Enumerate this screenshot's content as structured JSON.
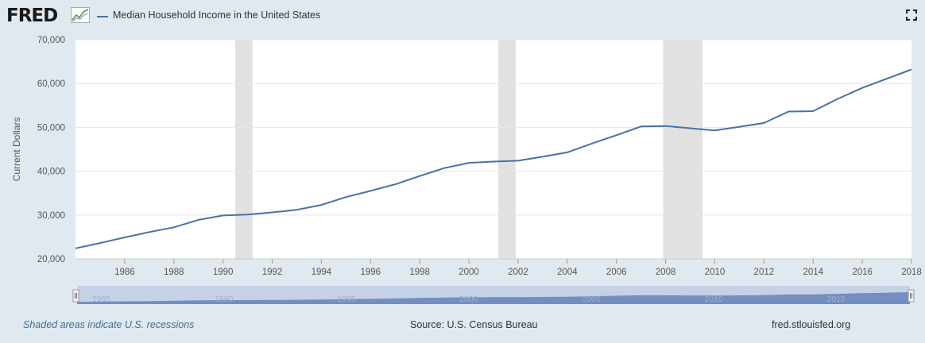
{
  "header": {
    "logo_text": "FRED",
    "logo_icon": "line-chart-icon",
    "fullscreen_icon": "fullscreen-icon"
  },
  "footer": {
    "recessions_note": "Shaded areas indicate U.S. recessions",
    "source": "Source: U.S. Census Bureau",
    "site": "fred.stlouisfed.org"
  },
  "colors": {
    "background": "#e1e9f0",
    "plot_background": "#ffffff",
    "series": "#4572a7",
    "recession": "#e1e1e1",
    "navigator_fill": "#c5d1e6",
    "navigator_series": "#6583b9"
  },
  "chart_data": {
    "type": "line",
    "title": "",
    "legend": [
      "Median Household Income in the United States"
    ],
    "legend_placement": "top-left",
    "ylabel": "Current Dollars",
    "xlabel": "",
    "ylim": [
      20000,
      70000
    ],
    "y_ticks": [
      20000,
      30000,
      40000,
      50000,
      60000,
      70000
    ],
    "y_tick_labels": [
      "20,000",
      "30,000",
      "40,000",
      "50,000",
      "60,000",
      "70,000"
    ],
    "xlim": [
      1984,
      2018
    ],
    "x_ticks": [
      1986,
      1988,
      1990,
      1992,
      1994,
      1996,
      1998,
      2000,
      2002,
      2004,
      2006,
      2008,
      2010,
      2012,
      2014,
      2016,
      2018
    ],
    "grid": true,
    "series": [
      {
        "name": "Median Household Income in the United States",
        "x": [
          1984,
          1985,
          1986,
          1987,
          1988,
          1989,
          1990,
          1991,
          1992,
          1993,
          1994,
          1995,
          1996,
          1997,
          1998,
          1999,
          2000,
          2001,
          2002,
          2003,
          2004,
          2005,
          2006,
          2007,
          2008,
          2009,
          2010,
          2011,
          2012,
          2013,
          2014,
          2015,
          2016,
          2017,
          2018
        ],
        "values": [
          22400,
          23600,
          24900,
          26100,
          27200,
          28900,
          29900,
          30100,
          30600,
          31200,
          32300,
          34100,
          35500,
          37000,
          38900,
          40700,
          41900,
          42200,
          42400,
          43300,
          44300,
          46300,
          48200,
          50200,
          50300,
          49800,
          49300,
          50100,
          51000,
          53600,
          53700,
          56500,
          59000,
          61100,
          63200
        ]
      }
    ],
    "recessions": [
      [
        1990.5,
        1991.2
      ],
      [
        2001.2,
        2001.9
      ],
      [
        2007.9,
        2009.5
      ]
    ],
    "navigator": {
      "labels": [
        "1985",
        "1990",
        "1995",
        "2000",
        "2005",
        "2010",
        "2015"
      ]
    }
  }
}
